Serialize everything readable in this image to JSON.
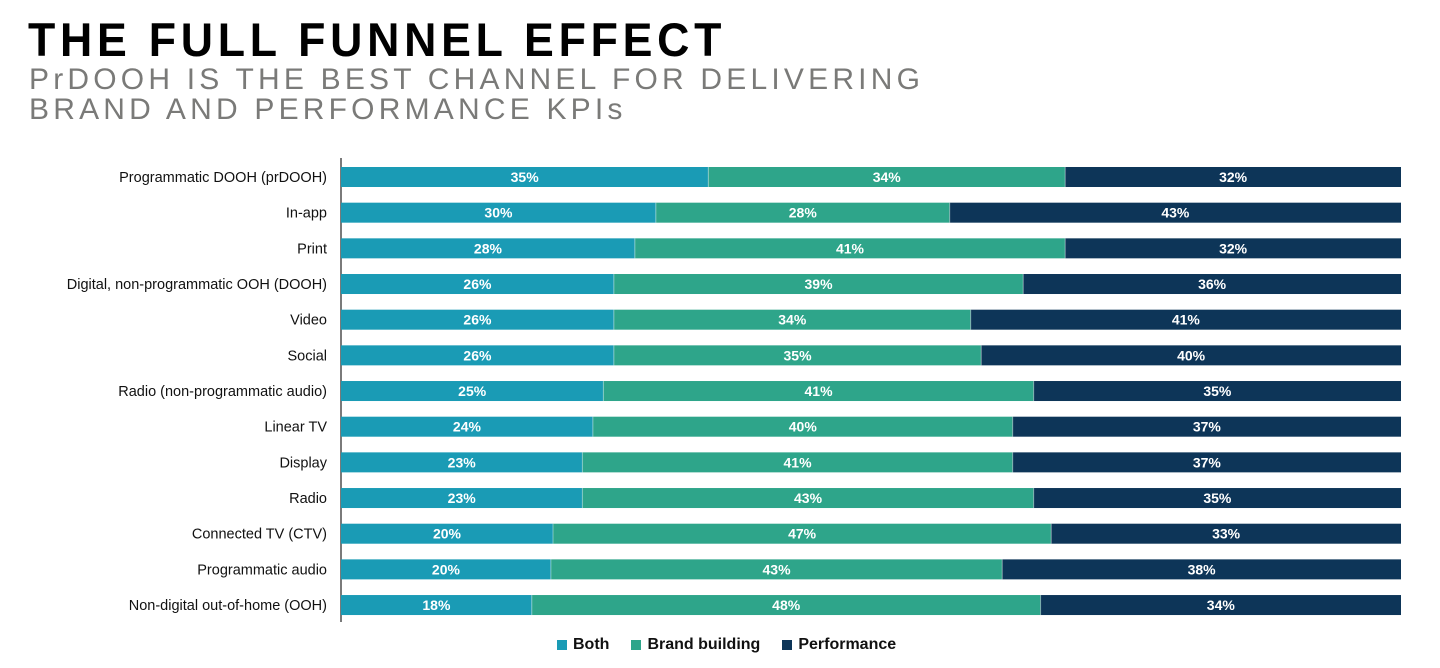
{
  "title": "THE FULL FUNNEL EFFECT",
  "subtitle_line1": "PrDOOH IS THE BEST CHANNEL FOR DELIVERING",
  "subtitle_line2": "BRAND AND PERFORMANCE KPIs",
  "chart_data": {
    "type": "bar",
    "orientation": "horizontal",
    "stacked": true,
    "percent_stacked": true,
    "categories": [
      "Programmatic DOOH (prDOOH)",
      "In-app",
      "Print",
      "Digital, non-programmatic OOH (DOOH)",
      "Video",
      "Social",
      "Radio (non-programmatic audio)",
      "Linear TV",
      "Display",
      "Radio",
      "Connected TV (CTV)",
      "Programmatic audio",
      "Non-digital out-of-home (OOH)"
    ],
    "series": [
      {
        "name": "Both",
        "color": "#1a9bb5",
        "values": [
          35,
          30,
          28,
          26,
          26,
          26,
          25,
          24,
          23,
          23,
          20,
          20,
          18
        ]
      },
      {
        "name": "Brand building",
        "color": "#2ea58a",
        "values": [
          34,
          28,
          41,
          39,
          34,
          35,
          41,
          40,
          41,
          43,
          47,
          43,
          48
        ]
      },
      {
        "name": "Performance",
        "color": "#0d3558",
        "values": [
          32,
          43,
          32,
          36,
          41,
          40,
          35,
          37,
          37,
          35,
          33,
          38,
          34
        ]
      }
    ],
    "value_suffix": "%",
    "legend_position": "bottom",
    "grid": false
  }
}
